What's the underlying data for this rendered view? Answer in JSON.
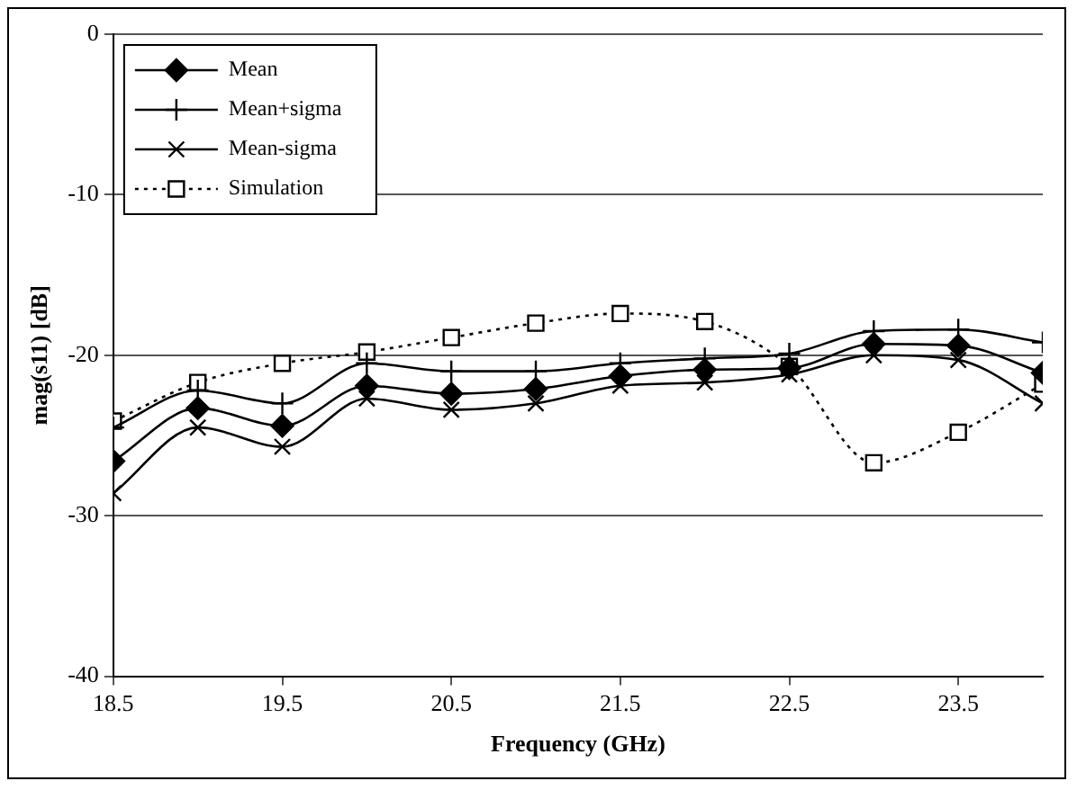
{
  "chart_data": {
    "type": "line",
    "xlabel": "Frequency (GHz)",
    "ylabel": "mag(s11) [dB]",
    "x": [
      18.5,
      19,
      19.5,
      20,
      20.5,
      21,
      21.5,
      22,
      22.5,
      23,
      23.5,
      24
    ],
    "xlim": [
      18.5,
      24
    ],
    "xticks": [
      18.5,
      19.5,
      20.5,
      21.5,
      22.5,
      23.5
    ],
    "ylim": [
      -40,
      0
    ],
    "yticks": [
      -40,
      -30,
      -20,
      -10,
      0
    ],
    "grid": "y",
    "legend": "top left",
    "series": [
      {
        "name": "Mean",
        "color": "#000000",
        "marker": "diamond",
        "line_style": "solid",
        "values": [
          -26.6,
          -23.3,
          -24.4,
          -21.9,
          -22.4,
          -22.1,
          -21.3,
          -20.9,
          -20.8,
          -19.3,
          -19.4,
          -21.1
        ]
      },
      {
        "name": "Mean+sigma",
        "color": "#000000",
        "marker": "cross",
        "line_style": "solid",
        "values": [
          -24.5,
          -22.2,
          -23.0,
          -20.5,
          -21.0,
          -21.0,
          -20.5,
          -20.2,
          -19.9,
          -18.5,
          -18.4,
          -19.2
        ]
      },
      {
        "name": "Mean-sigma",
        "color": "#000000",
        "marker": "x",
        "line_style": "solid",
        "values": [
          -28.6,
          -24.5,
          -25.7,
          -22.7,
          -23.4,
          -23.0,
          -21.9,
          -21.7,
          -21.2,
          -20.0,
          -20.3,
          -23.0
        ]
      },
      {
        "name": "Simulation",
        "color": "#000000",
        "marker": "square",
        "line_style": "dotted",
        "values": [
          -24.1,
          -21.7,
          -20.5,
          -19.8,
          -18.9,
          -18.0,
          -17.4,
          -17.9,
          -20.7,
          -26.7,
          -24.8,
          -21.8
        ]
      }
    ]
  }
}
